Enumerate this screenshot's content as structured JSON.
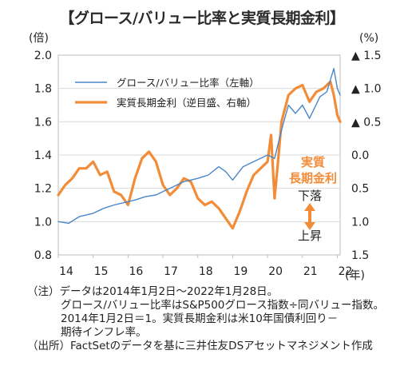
{
  "title": "【グロース/バリュー比率と実質長期金利】",
  "chart_data": {
    "type": "line",
    "left_axis": {
      "unit": "(倍)",
      "ticks": [
        "2.0",
        "1.8",
        "1.6",
        "1.4",
        "1.2",
        "1.0",
        "0.8"
      ],
      "range": [
        0.8,
        2.0
      ]
    },
    "right_axis": {
      "unit": "(%)",
      "inverted": true,
      "ticks": [
        "▲ 1.5",
        "▲ 1.0",
        "▲ 0.5",
        "0.0",
        "0.5",
        "1.0",
        "1.5"
      ],
      "range": [
        -1.5,
        1.5
      ]
    },
    "x_axis": {
      "unit": "(年)",
      "ticks": [
        "14",
        "15",
        "16",
        "17",
        "18",
        "19",
        "20",
        "21",
        "22"
      ],
      "range": [
        2014.0,
        2022.08
      ]
    },
    "legend": [
      {
        "label": "グロース/バリュー比率（左軸）",
        "color": "#4a86c8"
      },
      {
        "label": "実質長期金利（逆目盛、右軸）",
        "color": "#f28c38"
      }
    ],
    "annotations": {
      "real_rate_label": [
        "実質",
        "長期金利"
      ],
      "down": "下落",
      "up": "上昇"
    },
    "series": [
      {
        "name": "グロース/バリュー比率（左軸）",
        "axis": "left",
        "color": "#4a86c8",
        "x": [
          2014.0,
          2014.3,
          2014.6,
          2015.0,
          2015.3,
          2015.6,
          2016.0,
          2016.2,
          2016.5,
          2016.8,
          2017.0,
          2017.3,
          2017.6,
          2018.0,
          2018.3,
          2018.6,
          2018.8,
          2019.0,
          2019.3,
          2019.6,
          2020.0,
          2020.2,
          2020.4,
          2020.6,
          2020.8,
          2021.0,
          2021.2,
          2021.5,
          2021.7,
          2021.9,
          2022.0,
          2022.08
        ],
        "values": [
          1.0,
          0.99,
          1.03,
          1.05,
          1.08,
          1.1,
          1.12,
          1.13,
          1.15,
          1.16,
          1.18,
          1.21,
          1.24,
          1.26,
          1.28,
          1.33,
          1.3,
          1.25,
          1.33,
          1.36,
          1.4,
          1.38,
          1.55,
          1.7,
          1.65,
          1.7,
          1.62,
          1.75,
          1.78,
          1.92,
          1.8,
          1.76
        ]
      },
      {
        "name": "実質長期金利（逆目盛、右軸）",
        "axis": "right",
        "color": "#f28c38",
        "x": [
          2014.0,
          2014.2,
          2014.4,
          2014.6,
          2014.8,
          2015.0,
          2015.2,
          2015.4,
          2015.6,
          2015.8,
          2016.0,
          2016.2,
          2016.4,
          2016.6,
          2016.8,
          2017.0,
          2017.2,
          2017.4,
          2017.6,
          2017.8,
          2018.0,
          2018.2,
          2018.4,
          2018.6,
          2018.8,
          2019.0,
          2019.2,
          2019.4,
          2019.6,
          2019.8,
          2020.0,
          2020.1,
          2020.2,
          2020.3,
          2020.4,
          2020.6,
          2020.8,
          2021.0,
          2021.2,
          2021.4,
          2021.6,
          2021.8,
          2021.9,
          2022.0,
          2022.08
        ],
        "values": [
          0.6,
          0.45,
          0.35,
          0.2,
          0.2,
          0.1,
          0.3,
          0.25,
          0.55,
          0.6,
          0.75,
          0.35,
          0.05,
          -0.05,
          0.1,
          0.45,
          0.6,
          0.5,
          0.35,
          0.4,
          0.65,
          0.75,
          0.7,
          0.8,
          0.95,
          1.1,
          0.85,
          0.55,
          0.3,
          0.2,
          0.1,
          -0.3,
          0.65,
          0.1,
          -0.5,
          -0.9,
          -1.0,
          -1.05,
          -0.8,
          -0.95,
          -1.0,
          -1.1,
          -0.9,
          -0.6,
          -0.5
        ]
      }
    ]
  },
  "notes": [
    "（注）データは2014年1月2日～2022年1月28日。",
    "グロース/バリュー比率はS&P500グロース指数÷同バリュー指数。",
    "2014年1月2日＝1。実質長期金利は米10年国債利回り－",
    "期待インフレ率。",
    "（出所）FactSetのデータを基に三井住友DSアセットマネジメント作成"
  ]
}
